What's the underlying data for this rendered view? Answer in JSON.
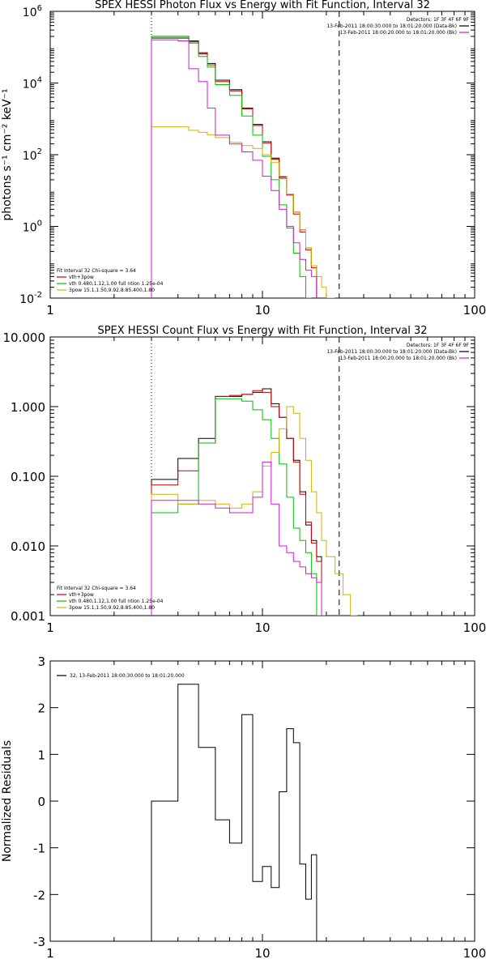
{
  "chart_data": [
    {
      "type": "line",
      "title": "SPEX HESSI Photon Flux vs Energy with Fit Function, Interval 32",
      "ylabel": "photons s⁻¹ cm⁻² keV⁻¹",
      "xscale": "log",
      "yscale": "log",
      "xlim": [
        1,
        100
      ],
      "ylim": [
        0.01,
        1000000
      ],
      "xticks": [
        {
          "v": 1,
          "label": "1"
        },
        {
          "v": 10,
          "label": "10"
        },
        {
          "v": 100,
          "label": "100"
        }
      ],
      "yticks": [
        {
          "v": 0.01,
          "base": "10",
          "exp": "-2"
        },
        {
          "v": 1,
          "base": "10",
          "exp": "0"
        },
        {
          "v": 100,
          "base": "10",
          "exp": "2"
        },
        {
          "v": 10000,
          "base": "10",
          "exp": "4"
        },
        {
          "v": 1000000,
          "base": "10",
          "exp": "6"
        }
      ],
      "vlines": [
        {
          "x": 3.0,
          "style": "dotted"
        },
        {
          "x": 23.0,
          "style": "dashed"
        }
      ],
      "legend_topright": {
        "lines": [
          {
            "text": "Detectors: 1F 3F 4F 6F 9F",
            "color": ""
          },
          {
            "text": "13-Feb-2011 18:00:30.000 to 18:01:20.000 (Data-Bk)",
            "color": "#000000"
          },
          {
            "text": "13-Feb-2011 18:00:20.000 to 18:01:20.000 (Bk)",
            "color": "#d01ad0"
          }
        ]
      },
      "legend_bottomleft": {
        "lines": [
          {
            "text": "Fit Interval 32    Chi-square = 3.64",
            "color": ""
          },
          {
            "text": "vth+3pow",
            "color": "#cc0000"
          },
          {
            "text": "vth 0.480,1.12,1.00   full ntion 1.25e-04",
            "color": "#00c000"
          },
          {
            "text": "3pow 15.1,1.50,9.92,8.85,400,1.80",
            "color": "#d4b000"
          }
        ]
      },
      "x_edges": [
        3,
        3.5,
        4,
        4.5,
        5,
        5.5,
        6,
        6.5,
        7,
        7.5,
        8,
        8.5,
        9,
        9.5,
        10,
        11,
        12,
        13,
        14,
        15,
        16,
        17,
        18,
        19,
        20,
        22,
        24,
        26,
        28,
        30
      ],
      "series": [
        {
          "name": "Data-Bk",
          "color": "#000000",
          "values": [
            180000,
            180000,
            180000,
            150000,
            70000,
            35000,
            12000,
            12000,
            6500,
            6500,
            2000,
            2000,
            700,
            700,
            230,
            80,
            24,
            8,
            2.5,
            0.8,
            0.25,
            0.08
          ]
        },
        {
          "name": "vth+3pow",
          "color": "#cc0000",
          "values": [
            200000,
            200000,
            200000,
            140000,
            65000,
            32000,
            11000,
            11000,
            6000,
            6000,
            1900,
            1900,
            650,
            650,
            210,
            75,
            22,
            7.5,
            2.2,
            0.7,
            0.22,
            0.07
          ]
        },
        {
          "name": "vth",
          "color": "#00c000",
          "values": [
            200000,
            200000,
            200000,
            130000,
            55000,
            28000,
            9000,
            9000,
            4500,
            4500,
            1200,
            1200,
            350,
            350,
            90,
            20,
            4,
            0.9,
            0.18,
            0.04,
            0.01
          ]
        },
        {
          "name": "3pow",
          "color": "#d4b000",
          "values": [
            600,
            600,
            600,
            480,
            420,
            360,
            300,
            300,
            220,
            220,
            180,
            180,
            150,
            150,
            100,
            60,
            25,
            8,
            2.5,
            0.8,
            0.25,
            0.08,
            0.04,
            0.02,
            0.01
          ]
        },
        {
          "name": "Bk",
          "color": "#d01ad0",
          "values": [
            160000,
            160000,
            150000,
            25000,
            11000,
            2000,
            350,
            350,
            200,
            200,
            120,
            120,
            70,
            70,
            25,
            10,
            3,
            1,
            0.35,
            0.12,
            0.06,
            0.04
          ]
        }
      ]
    },
    {
      "type": "line",
      "title": "SPEX HESSI Count Flux vs Energy with Fit Function, Interval 32",
      "ylabel": "",
      "xscale": "log",
      "yscale": "log",
      "xlim": [
        1,
        100
      ],
      "ylim": [
        0.001,
        10
      ],
      "xticks": [
        {
          "v": 1,
          "label": "1"
        },
        {
          "v": 10,
          "label": "10"
        },
        {
          "v": 100,
          "label": "100"
        }
      ],
      "yticks": [
        {
          "v": 0.001,
          "label": "0.001"
        },
        {
          "v": 0.01,
          "label": "0.010"
        },
        {
          "v": 0.1,
          "label": "0.100"
        },
        {
          "v": 1,
          "label": "1.000"
        },
        {
          "v": 10,
          "label": "10.000"
        }
      ],
      "vlines": [
        {
          "x": 3.0,
          "style": "dotted"
        },
        {
          "x": 23.0,
          "style": "dashed"
        }
      ],
      "legend_topright": {
        "lines": [
          {
            "text": "Detectors: 1F 3F 4F 6F 9F",
            "color": ""
          },
          {
            "text": "13-Feb-2011 18:00:30.000 to 18:01:20.000 (Data-Bk)",
            "color": "#000000"
          },
          {
            "text": "13-Feb-2011 18:00:20.000 to 18:01:20.000 (Bk)",
            "color": "#d01ad0"
          }
        ]
      },
      "legend_bottomleft": {
        "lines": [
          {
            "text": "Fit Interval 32    Chi-square = 3.64",
            "color": ""
          },
          {
            "text": "vth+3pow",
            "color": "#cc0000"
          },
          {
            "text": "vth 0.480,1.12,1.00   full ntion 1.25e-04",
            "color": "#00c000"
          },
          {
            "text": "3pow 15.1,1.50,9.92,8.85,400,1.80",
            "color": "#d4b000"
          }
        ]
      },
      "x_edges": [
        3,
        4,
        5,
        6,
        7,
        8,
        9,
        10,
        11,
        12,
        13,
        14,
        15,
        16,
        17,
        18,
        19,
        20,
        22,
        24,
        26,
        28,
        30
      ],
      "series": [
        {
          "name": "Data-Bk",
          "color": "#000000",
          "values": [
            0.09,
            0.18,
            0.35,
            1.4,
            1.4,
            1.5,
            1.6,
            1.8,
            1.1,
            0.7,
            0.35,
            0.17,
            0.06,
            0.02,
            0.012,
            0.007
          ]
        },
        {
          "name": "vth+3pow",
          "color": "#cc0000",
          "values": [
            0.075,
            0.12,
            0.3,
            1.4,
            1.45,
            1.5,
            1.7,
            1.6,
            1.0,
            0.7,
            0.35,
            0.16,
            0.055,
            0.022,
            0.011,
            0.006
          ]
        },
        {
          "name": "vth",
          "color": "#00c000",
          "values": [
            0.03,
            0.04,
            0.3,
            1.3,
            1.3,
            1.2,
            0.9,
            0.65,
            0.35,
            0.15,
            0.05,
            0.018,
            0.012,
            0.008,
            0.004,
            0.001
          ]
        },
        {
          "name": "3pow",
          "color": "#d4b000",
          "values": [
            0.055,
            0.04,
            0.045,
            0.04,
            0.035,
            0.04,
            0.06,
            0.14,
            0.22,
            0.48,
            1.0,
            0.8,
            0.35,
            0.17,
            0.06,
            0.03,
            0.012,
            0.007,
            0.004,
            0.002,
            0.001
          ]
        },
        {
          "name": "Bk",
          "color": "#d01ad0",
          "values": [
            0.045,
            0.045,
            0.04,
            0.035,
            0.03,
            0.03,
            0.05,
            0.16,
            0.04,
            0.01,
            0.008,
            0.006,
            0.005,
            0.004,
            0.0035,
            0.003,
            0.001
          ]
        }
      ]
    },
    {
      "type": "line",
      "title": "",
      "ylabel": "Normalized Residuals",
      "xscale": "log",
      "yscale": "linear",
      "xlim": [
        1,
        100
      ],
      "ylim": [
        -3,
        3
      ],
      "xticks": [
        {
          "v": 1,
          "label": "1"
        },
        {
          "v": 10,
          "label": "10"
        },
        {
          "v": 100,
          "label": "100"
        }
      ],
      "yticks": [
        {
          "v": -3,
          "label": "-3"
        },
        {
          "v": -2,
          "label": "-2"
        },
        {
          "v": -1,
          "label": "-1"
        },
        {
          "v": 0,
          "label": "0"
        },
        {
          "v": 1,
          "label": "1"
        },
        {
          "v": 2,
          "label": "2"
        },
        {
          "v": 3,
          "label": "3"
        }
      ],
      "vlines": [],
      "legend_topright": {
        "lines": []
      },
      "legend_bottomleft": {
        "lines": []
      },
      "legend_topleft": {
        "lines": [
          {
            "text": "32, 13-Feb-2011 18:00:30.000 to 18:01:20.000",
            "color": "#000000"
          }
        ]
      },
      "x_edges": [
        3,
        3.5,
        4,
        4.5,
        5,
        5.5,
        6,
        6.5,
        7,
        7.5,
        8,
        8.5,
        9,
        9.5,
        10,
        10.5,
        11,
        12,
        13,
        14,
        15,
        16,
        17,
        18,
        20,
        22,
        24
      ],
      "series": [
        {
          "name": "Residuals",
          "color": "#000000",
          "drop_to_bottom": true,
          "values": [
            0.0,
            0.0,
            2.5,
            2.5,
            1.15,
            1.15,
            -0.4,
            -0.4,
            -0.9,
            -0.9,
            1.85,
            1.85,
            -1.72,
            -1.72,
            -1.4,
            -1.4,
            -1.85,
            0.2,
            1.55,
            1.25,
            -1.35,
            -2.1,
            -1.15
          ]
        }
      ]
    }
  ]
}
